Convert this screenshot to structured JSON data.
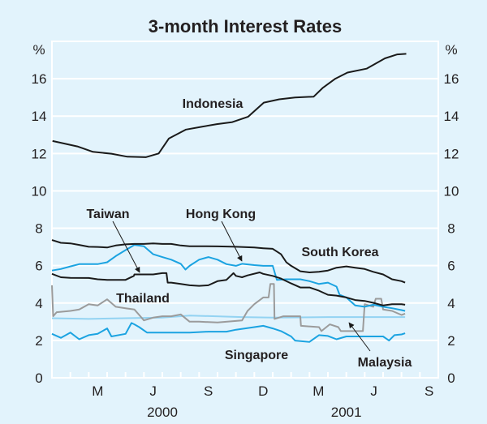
{
  "chart_data": {
    "type": "line",
    "title": "3-month Interest Rates",
    "ylabel_left": "%",
    "ylabel_right": "%",
    "ylim": [
      0,
      18
    ],
    "yticks": [
      0,
      2,
      4,
      6,
      8,
      10,
      12,
      14,
      16
    ],
    "xlim": [
      "2000-01-01",
      "2001-10-01"
    ],
    "xtick_labels": [
      {
        "label": "M",
        "date": "2000-03-16"
      },
      {
        "label": "J",
        "date": "2000-06-16"
      },
      {
        "label": "S",
        "date": "2000-09-16"
      },
      {
        "label": "D",
        "date": "2000-12-16"
      },
      {
        "label": "M",
        "date": "2001-03-16"
      },
      {
        "label": "J",
        "date": "2001-06-16"
      },
      {
        "label": "S",
        "date": "2001-09-16"
      }
    ],
    "year_labels": [
      {
        "label": "2000",
        "date": "2000-07-01"
      },
      {
        "label": "2001",
        "date": "2001-05-01"
      }
    ],
    "grid": true,
    "colors": {
      "background": "#e2f3fc",
      "grid": "#ffffff",
      "black": "#1a1a1a",
      "blue": "#1ba3e1",
      "light_blue": "#93d3f2",
      "grey": "#9b9b9b"
    },
    "series": [
      {
        "name": "Indonesia",
        "color": "#1a1a1a",
        "points": [
          [
            "2000-01-02",
            12.67
          ],
          [
            "2000-02-12",
            12.38
          ],
          [
            "2000-03-08",
            12.09
          ],
          [
            "2000-04-08",
            11.99
          ],
          [
            "2000-05-04",
            11.83
          ],
          [
            "2000-06-04",
            11.8
          ],
          [
            "2000-06-25",
            12.0
          ],
          [
            "2000-07-12",
            12.8
          ],
          [
            "2000-08-10",
            13.28
          ],
          [
            "2000-09-05",
            13.43
          ],
          [
            "2000-09-30",
            13.57
          ],
          [
            "2000-10-26",
            13.68
          ],
          [
            "2000-11-21",
            13.97
          ],
          [
            "2000-12-17",
            14.72
          ],
          [
            "2001-01-12",
            14.9
          ],
          [
            "2001-02-07",
            15.0
          ],
          [
            "2001-03-08",
            15.04
          ],
          [
            "2001-03-23",
            15.5
          ],
          [
            "2001-04-13",
            16.0
          ],
          [
            "2001-05-03",
            16.33
          ],
          [
            "2001-06-04",
            16.54
          ],
          [
            "2001-07-04",
            17.09
          ],
          [
            "2001-07-25",
            17.3
          ],
          [
            "2001-08-09",
            17.33
          ]
        ]
      },
      {
        "name": "South Korea",
        "color": "#1a1a1a",
        "points": [
          [
            "2000-01-01",
            7.37
          ],
          [
            "2000-01-16",
            7.22
          ],
          [
            "2000-02-01",
            7.19
          ],
          [
            "2000-02-15",
            7.11
          ],
          [
            "2000-03-01",
            7.01
          ],
          [
            "2000-03-16",
            7.0
          ],
          [
            "2000-04-01",
            6.97
          ],
          [
            "2000-04-15",
            7.08
          ],
          [
            "2000-05-01",
            7.14
          ],
          [
            "2000-05-16",
            7.16
          ],
          [
            "2000-06-01",
            7.16
          ],
          [
            "2000-06-16",
            7.19
          ],
          [
            "2000-07-01",
            7.16
          ],
          [
            "2000-07-16",
            7.16
          ],
          [
            "2000-08-01",
            7.08
          ],
          [
            "2000-08-16",
            7.04
          ],
          [
            "2000-09-01",
            7.04
          ],
          [
            "2000-10-01",
            7.03
          ],
          [
            "2000-11-01",
            7.01
          ],
          [
            "2000-12-01",
            6.97
          ],
          [
            "2000-12-16",
            6.93
          ],
          [
            "2001-01-01",
            6.9
          ],
          [
            "2001-01-15",
            6.61
          ],
          [
            "2001-01-24",
            6.18
          ],
          [
            "2001-02-01",
            5.99
          ],
          [
            "2001-02-15",
            5.7
          ],
          [
            "2001-03-01",
            5.64
          ],
          [
            "2001-03-17",
            5.67
          ],
          [
            "2001-04-01",
            5.74
          ],
          [
            "2001-04-15",
            5.89
          ],
          [
            "2001-05-01",
            5.96
          ],
          [
            "2001-05-16",
            5.89
          ],
          [
            "2001-06-01",
            5.82
          ],
          [
            "2001-06-15",
            5.67
          ],
          [
            "2001-07-01",
            5.53
          ],
          [
            "2001-07-16",
            5.27
          ],
          [
            "2001-08-01",
            5.17
          ],
          [
            "2001-08-07",
            5.09
          ]
        ]
      },
      {
        "name": "Hong Kong",
        "color": "#1ba3e1",
        "points": [
          [
            "2000-01-01",
            5.74
          ],
          [
            "2000-01-16",
            5.82
          ],
          [
            "2000-02-01",
            5.96
          ],
          [
            "2000-02-15",
            6.08
          ],
          [
            "2000-03-16",
            6.08
          ],
          [
            "2000-04-01",
            6.18
          ],
          [
            "2000-04-15",
            6.51
          ],
          [
            "2000-05-01",
            6.83
          ],
          [
            "2000-05-16",
            7.11
          ],
          [
            "2000-06-01",
            7.04
          ],
          [
            "2000-06-16",
            6.61
          ],
          [
            "2000-07-01",
            6.46
          ],
          [
            "2000-07-16",
            6.32
          ],
          [
            "2000-08-01",
            6.1
          ],
          [
            "2000-08-09",
            5.79
          ],
          [
            "2000-08-16",
            5.99
          ],
          [
            "2000-09-01",
            6.32
          ],
          [
            "2000-09-16",
            6.46
          ],
          [
            "2000-10-01",
            6.32
          ],
          [
            "2000-10-16",
            6.08
          ],
          [
            "2000-11-01",
            5.99
          ],
          [
            "2000-11-11",
            6.1
          ],
          [
            "2000-12-01",
            6.03
          ],
          [
            "2000-12-16",
            5.99
          ],
          [
            "2001-01-01",
            5.99
          ],
          [
            "2001-01-08",
            5.24
          ],
          [
            "2001-01-24",
            5.27
          ],
          [
            "2001-02-15",
            5.27
          ],
          [
            "2001-03-01",
            5.17
          ],
          [
            "2001-03-17",
            5.02
          ],
          [
            "2001-04-01",
            5.09
          ],
          [
            "2001-04-15",
            4.88
          ],
          [
            "2001-04-20",
            4.44
          ],
          [
            "2001-05-01",
            4.3
          ],
          [
            "2001-05-16",
            3.87
          ],
          [
            "2001-06-01",
            3.8
          ],
          [
            "2001-06-15",
            3.91
          ],
          [
            "2001-07-01",
            3.8
          ],
          [
            "2001-07-16",
            3.72
          ],
          [
            "2001-08-01",
            3.62
          ],
          [
            "2001-08-07",
            3.58
          ]
        ]
      },
      {
        "name": "Taiwan",
        "color": "#1a1a1a",
        "points": [
          [
            "2000-01-01",
            5.56
          ],
          [
            "2000-01-16",
            5.38
          ],
          [
            "2000-02-01",
            5.35
          ],
          [
            "2000-03-01",
            5.34
          ],
          [
            "2000-03-16",
            5.27
          ],
          [
            "2000-04-01",
            5.24
          ],
          [
            "2000-05-01",
            5.24
          ],
          [
            "2000-05-15",
            5.45
          ],
          [
            "2000-05-16",
            5.53
          ],
          [
            "2000-06-16",
            5.53
          ],
          [
            "2000-07-01",
            5.6
          ],
          [
            "2000-07-08",
            5.6
          ],
          [
            "2000-07-10",
            5.09
          ],
          [
            "2000-07-16",
            5.09
          ],
          [
            "2000-08-01",
            5.02
          ],
          [
            "2000-08-16",
            4.95
          ],
          [
            "2000-09-01",
            4.92
          ],
          [
            "2000-09-16",
            4.95
          ],
          [
            "2000-10-01",
            5.17
          ],
          [
            "2000-10-16",
            5.24
          ],
          [
            "2000-10-28",
            5.6
          ],
          [
            "2000-11-01",
            5.45
          ],
          [
            "2000-11-11",
            5.38
          ],
          [
            "2000-11-20",
            5.48
          ],
          [
            "2000-12-10",
            5.64
          ],
          [
            "2000-12-16",
            5.56
          ],
          [
            "2001-01-01",
            5.45
          ],
          [
            "2001-01-15",
            5.31
          ],
          [
            "2001-02-01",
            5.05
          ],
          [
            "2001-02-15",
            4.83
          ],
          [
            "2001-03-01",
            4.83
          ],
          [
            "2001-03-17",
            4.66
          ],
          [
            "2001-04-01",
            4.44
          ],
          [
            "2001-04-15",
            4.4
          ],
          [
            "2001-05-01",
            4.3
          ],
          [
            "2001-05-16",
            4.16
          ],
          [
            "2001-06-01",
            4.11
          ],
          [
            "2001-06-15",
            4.01
          ],
          [
            "2001-07-01",
            3.87
          ],
          [
            "2001-07-16",
            3.94
          ],
          [
            "2001-08-01",
            3.94
          ],
          [
            "2001-08-07",
            3.91
          ]
        ]
      },
      {
        "name": "Thailand",
        "color": "#93d3f2",
        "points": [
          [
            "2000-01-01",
            3.19
          ],
          [
            "2000-03-01",
            3.15
          ],
          [
            "2000-05-01",
            3.19
          ],
          [
            "2000-07-01",
            3.22
          ],
          [
            "2000-08-16",
            3.33
          ],
          [
            "2000-11-11",
            3.25
          ],
          [
            "2001-01-01",
            3.22
          ],
          [
            "2001-04-01",
            3.25
          ],
          [
            "2001-08-07",
            3.25
          ]
        ]
      },
      {
        "name": "Malaysia",
        "color": "#9b9b9b",
        "points": [
          [
            "2000-01-01",
            4.95
          ],
          [
            "2000-01-03",
            3.29
          ],
          [
            "2000-01-09",
            3.51
          ],
          [
            "2000-02-01",
            3.58
          ],
          [
            "2000-02-15",
            3.65
          ],
          [
            "2000-03-01",
            3.94
          ],
          [
            "2000-03-16",
            3.87
          ],
          [
            "2000-04-01",
            4.2
          ],
          [
            "2000-04-15",
            3.8
          ],
          [
            "2000-05-01",
            3.72
          ],
          [
            "2000-05-16",
            3.65
          ],
          [
            "2000-05-24",
            3.36
          ],
          [
            "2000-06-01",
            3.07
          ],
          [
            "2000-06-16",
            3.22
          ],
          [
            "2000-07-01",
            3.29
          ],
          [
            "2000-07-16",
            3.29
          ],
          [
            "2000-08-01",
            3.39
          ],
          [
            "2000-08-16",
            3.0
          ],
          [
            "2000-09-01",
            3.0
          ],
          [
            "2000-10-01",
            2.96
          ],
          [
            "2000-11-11",
            3.07
          ],
          [
            "2000-11-20",
            3.58
          ],
          [
            "2000-12-01",
            3.94
          ],
          [
            "2000-12-16",
            4.3
          ],
          [
            "2000-12-25",
            4.3
          ],
          [
            "2000-12-28",
            5.02
          ],
          [
            "2001-01-03",
            5.02
          ],
          [
            "2001-01-04",
            3.15
          ],
          [
            "2001-01-19",
            3.29
          ],
          [
            "2001-02-15",
            3.29
          ],
          [
            "2001-02-16",
            2.78
          ],
          [
            "2001-03-17",
            2.71
          ],
          [
            "2001-03-21",
            2.5
          ],
          [
            "2001-04-04",
            2.86
          ],
          [
            "2001-04-18",
            2.71
          ],
          [
            "2001-04-22",
            2.5
          ],
          [
            "2001-05-29",
            2.5
          ],
          [
            "2001-06-01",
            3.94
          ],
          [
            "2001-06-15",
            3.8
          ],
          [
            "2001-06-19",
            4.23
          ],
          [
            "2001-06-28",
            4.23
          ],
          [
            "2001-07-01",
            3.65
          ],
          [
            "2001-07-16",
            3.58
          ],
          [
            "2001-08-01",
            3.36
          ],
          [
            "2001-08-07",
            3.43
          ]
        ]
      },
      {
        "name": "Singapore",
        "color": "#1ba3e1",
        "points": [
          [
            "2000-01-01",
            2.35
          ],
          [
            "2000-01-16",
            2.14
          ],
          [
            "2000-02-01",
            2.42
          ],
          [
            "2000-02-15",
            2.06
          ],
          [
            "2000-03-01",
            2.28
          ],
          [
            "2000-03-16",
            2.35
          ],
          [
            "2000-04-01",
            2.64
          ],
          [
            "2000-04-08",
            2.21
          ],
          [
            "2000-05-01",
            2.35
          ],
          [
            "2000-05-11",
            2.93
          ],
          [
            "2000-05-16",
            2.86
          ],
          [
            "2000-05-24",
            2.71
          ],
          [
            "2000-06-06",
            2.42
          ],
          [
            "2000-08-16",
            2.42
          ],
          [
            "2000-09-16",
            2.47
          ],
          [
            "2000-10-16",
            2.47
          ],
          [
            "2000-11-01",
            2.57
          ],
          [
            "2000-12-01",
            2.71
          ],
          [
            "2000-12-16",
            2.78
          ],
          [
            "2001-01-01",
            2.64
          ],
          [
            "2001-01-15",
            2.5
          ],
          [
            "2001-02-01",
            2.21
          ],
          [
            "2001-02-07",
            1.99
          ],
          [
            "2001-03-01",
            1.92
          ],
          [
            "2001-03-17",
            2.28
          ],
          [
            "2001-04-01",
            2.24
          ],
          [
            "2001-04-15",
            2.06
          ],
          [
            "2001-05-01",
            2.21
          ],
          [
            "2001-07-01",
            2.21
          ],
          [
            "2001-07-11",
            1.99
          ],
          [
            "2001-07-20",
            2.28
          ],
          [
            "2001-08-01",
            2.32
          ],
          [
            "2001-08-07",
            2.38
          ]
        ]
      }
    ]
  }
}
